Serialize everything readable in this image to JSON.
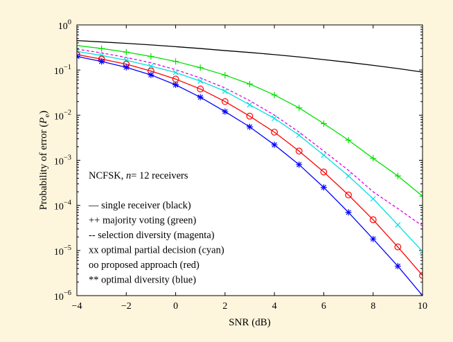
{
  "chart_data": {
    "type": "line",
    "title": "",
    "xlabel": "SNR (dB)",
    "ylabel": "Probability of error (Pe)",
    "ylabel_parts": {
      "main": "Probability of error (",
      "symbol": "P",
      "subscript": "e",
      "close": ")"
    },
    "xlim": [
      -4,
      10
    ],
    "ylim": [
      1e-06,
      1
    ],
    "yscale": "log",
    "grid": false,
    "x_ticks": [
      -4,
      -2,
      0,
      2,
      4,
      6,
      8,
      10
    ],
    "x_tick_labels": [
      "−4",
      "−2",
      "0",
      "2",
      "4",
      "6",
      "8",
      "10"
    ],
    "y_ticks": [
      {
        "value": 1e-06,
        "base": "10",
        "exp": "−6"
      },
      {
        "value": 1e-05,
        "base": "10",
        "exp": "−5"
      },
      {
        "value": 0.0001,
        "base": "10",
        "exp": "−4"
      },
      {
        "value": 0.001,
        "base": "10",
        "exp": "−3"
      },
      {
        "value": 0.01,
        "base": "10",
        "exp": "−2"
      },
      {
        "value": 0.1,
        "base": "10",
        "exp": "−1"
      },
      {
        "value": 1,
        "base": "10",
        "exp": "0"
      }
    ],
    "annotation": {
      "prefix": "NCFSK, ",
      "italic": "n",
      "suffix": "= 12 receivers"
    },
    "legend_lines": [
      "— single receiver (black)",
      "++ majority voting (green)",
      "-- selection diversity (magenta)",
      "xx optimal partial decision (cyan)",
      "oo proposed approach (red)",
      "** optimal diversity (blue)"
    ],
    "x": [
      -4,
      -3,
      -2,
      -1,
      0,
      1,
      2,
      3,
      4,
      5,
      6,
      7,
      8,
      9,
      10
    ],
    "series": [
      {
        "key": "single",
        "color": "#000000",
        "marker": "none",
        "dash": "none",
        "values": [
          0.45,
          0.42,
          0.39,
          0.36,
          0.33,
          0.3,
          0.27,
          0.245,
          0.22,
          0.195,
          0.17,
          0.148,
          0.127,
          0.108,
          0.09
        ]
      },
      {
        "key": "majority",
        "color": "#00e000",
        "marker": "plus",
        "dash": "none",
        "values": [
          0.35,
          0.3,
          0.25,
          0.2,
          0.155,
          0.113,
          0.077,
          0.049,
          0.028,
          0.0145,
          0.0065,
          0.0028,
          0.0011,
          0.00045,
          0.00016
        ]
      },
      {
        "key": "selection",
        "color": "#e000e0",
        "marker": "none",
        "dash": "dashed",
        "values": [
          0.29,
          0.24,
          0.19,
          0.145,
          0.102,
          0.067,
          0.04,
          0.021,
          0.01,
          0.0042,
          0.0016,
          0.0006,
          0.0002,
          8.5e-05,
          3.5e-05
        ]
      },
      {
        "key": "optimal-partial",
        "color": "#00e0e0",
        "marker": "x",
        "dash": "none",
        "values": [
          0.26,
          0.21,
          0.165,
          0.122,
          0.088,
          0.057,
          0.034,
          0.017,
          0.0085,
          0.0036,
          0.0013,
          0.00045,
          0.00014,
          3.7e-05,
          9.5e-06
        ]
      },
      {
        "key": "proposed",
        "color": "#ff0000",
        "marker": "circle",
        "dash": "none",
        "values": [
          0.22,
          0.175,
          0.135,
          0.095,
          0.063,
          0.038,
          0.02,
          0.0095,
          0.0042,
          0.0016,
          0.00055,
          0.00017,
          4.8e-05,
          1.2e-05,
          2.8e-06
        ]
      },
      {
        "key": "optimal-diversity",
        "color": "#0000ff",
        "marker": "asterisk",
        "dash": "none",
        "values": [
          0.2,
          0.155,
          0.115,
          0.078,
          0.047,
          0.025,
          0.012,
          0.0055,
          0.0022,
          0.0008,
          0.00025,
          7e-05,
          1.8e-05,
          4.5e-06,
          1e-06
        ]
      }
    ]
  }
}
